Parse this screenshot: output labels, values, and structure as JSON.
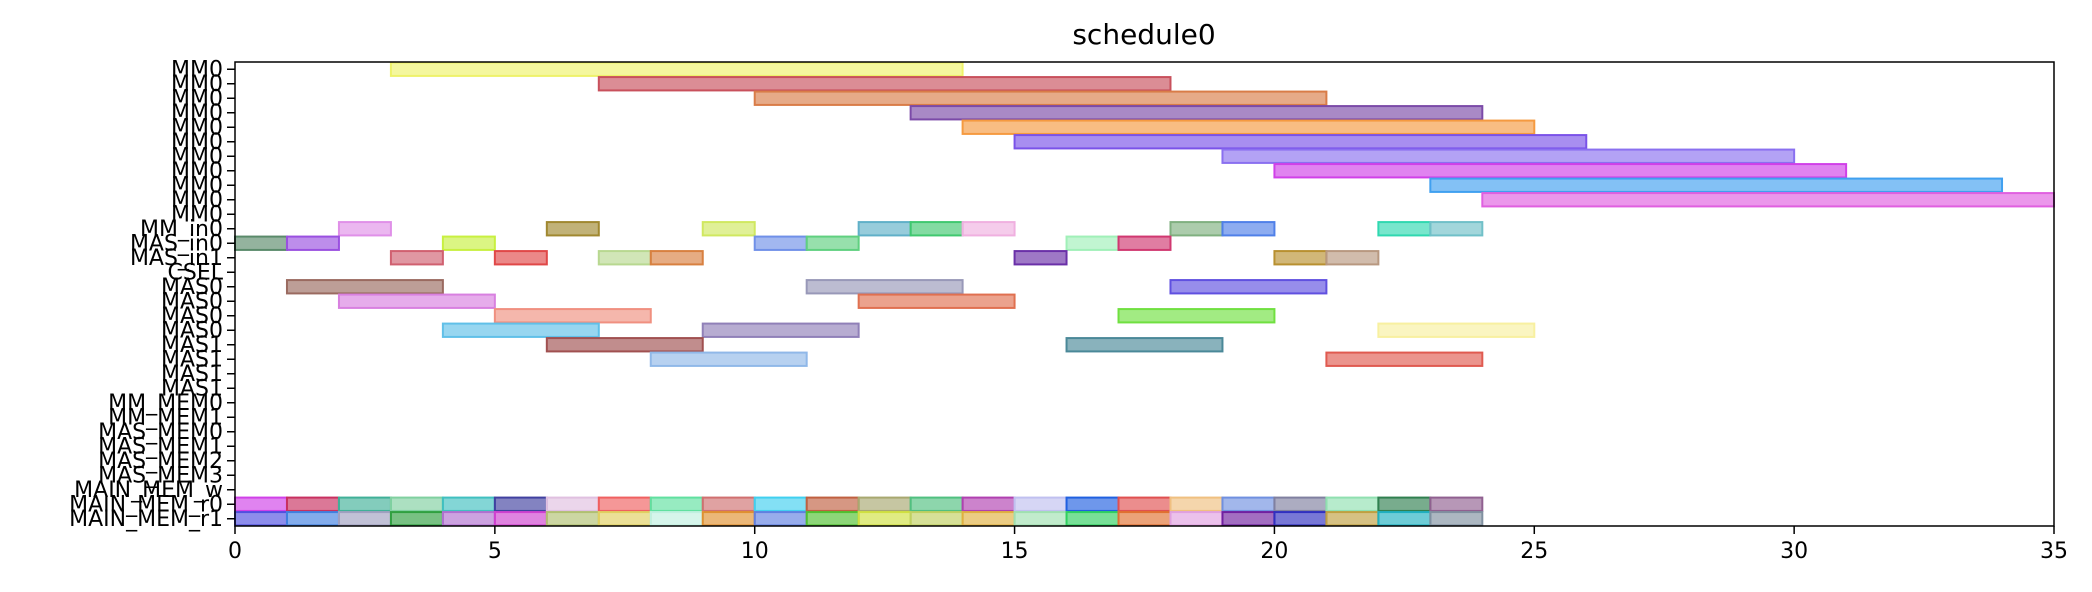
{
  "chart_data": {
    "type": "gantt",
    "title": "schedule0",
    "xlabel": "",
    "ylabel": "",
    "xlim": [
      0,
      35
    ],
    "xticks": [
      0,
      5,
      10,
      15,
      20,
      25,
      30,
      35
    ],
    "grid": false,
    "legend": "none",
    "rows": [
      "MM0",
      "MM0",
      "MM0",
      "MM0",
      "MM0",
      "MM0",
      "MM0",
      "MM0",
      "MM0",
      "MM0",
      "MM0",
      "MM_in0",
      "MAS_in0",
      "MAS_in1",
      "CSEL",
      "MAS0",
      "MAS0",
      "MAS0",
      "MAS0",
      "MAS1",
      "MAS1",
      "MAS1",
      "MAS1",
      "MM_MEM0",
      "MM_MEM1",
      "MAS_MEM0",
      "MAS_MEM1",
      "MAS_MEM2",
      "MAS_MEM3",
      "MAIN_MEM_w",
      "MAIN_MEM_r0",
      "MAIN_MEM_r1"
    ],
    "tasks": [
      {
        "row": 0,
        "start": 3,
        "end": 14,
        "color": "#eef26a"
      },
      {
        "row": 1,
        "start": 7,
        "end": 18,
        "color": "#c8505c"
      },
      {
        "row": 2,
        "start": 10,
        "end": 21,
        "color": "#d97c48"
      },
      {
        "row": 3,
        "start": 13,
        "end": 24,
        "color": "#7b4aa8"
      },
      {
        "row": 4,
        "start": 14,
        "end": 25,
        "color": "#f59a40"
      },
      {
        "row": 5,
        "start": 15,
        "end": 26,
        "color": "#7a52e8"
      },
      {
        "row": 6,
        "start": 19,
        "end": 30,
        "color": "#8a70f0"
      },
      {
        "row": 7,
        "start": 20,
        "end": 31,
        "color": "#d040e8"
      },
      {
        "row": 8,
        "start": 23,
        "end": 34,
        "color": "#40a0f0"
      },
      {
        "row": 9,
        "start": 24,
        "end": 35,
        "color": "#e060e0"
      },
      {
        "row": 11,
        "start": 2,
        "end": 3,
        "color": "#e090e8"
      },
      {
        "row": 11,
        "start": 6,
        "end": 7,
        "color": "#a08830"
      },
      {
        "row": 11,
        "start": 9,
        "end": 10,
        "color": "#d0e860"
      },
      {
        "row": 11,
        "start": 12,
        "end": 13,
        "color": "#60b0c8"
      },
      {
        "row": 11,
        "start": 13,
        "end": 14,
        "color": "#40c870"
      },
      {
        "row": 11,
        "start": 14,
        "end": 15,
        "color": "#f0b0e0"
      },
      {
        "row": 11,
        "start": 18,
        "end": 19,
        "color": "#80b080"
      },
      {
        "row": 11,
        "start": 19,
        "end": 20,
        "color": "#5080e8"
      },
      {
        "row": 11,
        "start": 22,
        "end": 23,
        "color": "#30d8b0"
      },
      {
        "row": 11,
        "start": 23,
        "end": 24,
        "color": "#70c0c8"
      },
      {
        "row": 12,
        "start": 0,
        "end": 1,
        "color": "#5a8a6a"
      },
      {
        "row": 12,
        "start": 1,
        "end": 2,
        "color": "#9a50e0"
      },
      {
        "row": 12,
        "start": 4,
        "end": 5,
        "color": "#c8f040"
      },
      {
        "row": 12,
        "start": 10,
        "end": 11,
        "color": "#7090e8"
      },
      {
        "row": 12,
        "start": 11,
        "end": 12,
        "color": "#60d080"
      },
      {
        "row": 12,
        "start": 16,
        "end": 17,
        "color": "#a0f0b8"
      },
      {
        "row": 12,
        "start": 17,
        "end": 18,
        "color": "#d03870"
      },
      {
        "row": 13,
        "start": 3,
        "end": 4,
        "color": "#d06070"
      },
      {
        "row": 13,
        "start": 5,
        "end": 6,
        "color": "#e04848"
      },
      {
        "row": 13,
        "start": 7,
        "end": 8,
        "color": "#b8d890"
      },
      {
        "row": 13,
        "start": 8,
        "end": 9,
        "color": "#d88040"
      },
      {
        "row": 13,
        "start": 15,
        "end": 16,
        "color": "#6a30a8"
      },
      {
        "row": 13,
        "start": 20,
        "end": 21,
        "color": "#b89030"
      },
      {
        "row": 13,
        "start": 21,
        "end": 22,
        "color": "#b89880"
      },
      {
        "row": 15,
        "start": 1,
        "end": 4,
        "color": "#9a6a60"
      },
      {
        "row": 15,
        "start": 11,
        "end": 14,
        "color": "#9898b8"
      },
      {
        "row": 15,
        "start": 18,
        "end": 21,
        "color": "#6050e0"
      },
      {
        "row": 16,
        "start": 2,
        "end": 5,
        "color": "#d880e0"
      },
      {
        "row": 16,
        "start": 12,
        "end": 15,
        "color": "#e07050"
      },
      {
        "row": 17,
        "start": 5,
        "end": 8,
        "color": "#f09080"
      },
      {
        "row": 17,
        "start": 17,
        "end": 20,
        "color": "#70e040"
      },
      {
        "row": 18,
        "start": 4,
        "end": 7,
        "color": "#60c0e8"
      },
      {
        "row": 18,
        "start": 9,
        "end": 12,
        "color": "#9080b8"
      },
      {
        "row": 18,
        "start": 22,
        "end": 25,
        "color": "#f8f0a0"
      },
      {
        "row": 19,
        "start": 6,
        "end": 9,
        "color": "#a05050"
      },
      {
        "row": 19,
        "start": 16,
        "end": 19,
        "color": "#4a8898"
      },
      {
        "row": 20,
        "start": 8,
        "end": 11,
        "color": "#90b8e8"
      },
      {
        "row": 20,
        "start": 21,
        "end": 24,
        "color": "#e05a50"
      },
      {
        "row": 30,
        "start": 0,
        "end": 1,
        "color": "#d040e8"
      },
      {
        "row": 30,
        "start": 1,
        "end": 2,
        "color": "#c83060"
      },
      {
        "row": 30,
        "start": 2,
        "end": 3,
        "color": "#40b098"
      },
      {
        "row": 30,
        "start": 3,
        "end": 4,
        "color": "#80d0a0"
      },
      {
        "row": 30,
        "start": 4,
        "end": 5,
        "color": "#40c0c0"
      },
      {
        "row": 30,
        "start": 5,
        "end": 6,
        "color": "#4040a0"
      },
      {
        "row": 30,
        "start": 6,
        "end": 7,
        "color": "#e0c0e0"
      },
      {
        "row": 30,
        "start": 7,
        "end": 8,
        "color": "#f06060"
      },
      {
        "row": 30,
        "start": 8,
        "end": 9,
        "color": "#60e0a0"
      },
      {
        "row": 30,
        "start": 9,
        "end": 10,
        "color": "#d07070"
      },
      {
        "row": 30,
        "start": 10,
        "end": 11,
        "color": "#40d0f0"
      },
      {
        "row": 30,
        "start": 11,
        "end": 12,
        "color": "#c06040"
      },
      {
        "row": 30,
        "start": 12,
        "end": 13,
        "color": "#a8a870"
      },
      {
        "row": 30,
        "start": 13,
        "end": 14,
        "color": "#50c080"
      },
      {
        "row": 30,
        "start": 14,
        "end": 15,
        "color": "#b040b0"
      },
      {
        "row": 30,
        "start": 15,
        "end": 16,
        "color": "#c0c0f0"
      },
      {
        "row": 30,
        "start": 16,
        "end": 17,
        "color": "#2060e0"
      },
      {
        "row": 30,
        "start": 17,
        "end": 18,
        "color": "#e05050"
      },
      {
        "row": 30,
        "start": 18,
        "end": 19,
        "color": "#f0c080"
      },
      {
        "row": 30,
        "start": 19,
        "end": 20,
        "color": "#7090e0"
      },
      {
        "row": 30,
        "start": 20,
        "end": 21,
        "color": "#8080a0"
      },
      {
        "row": 30,
        "start": 21,
        "end": 22,
        "color": "#90e0b0"
      },
      {
        "row": 30,
        "start": 22,
        "end": 23,
        "color": "#308050"
      },
      {
        "row": 30,
        "start": 23,
        "end": 24,
        "color": "#906090"
      },
      {
        "row": 31,
        "start": 0,
        "end": 1,
        "color": "#5050e0"
      },
      {
        "row": 31,
        "start": 1,
        "end": 2,
        "color": "#4080e0"
      },
      {
        "row": 31,
        "start": 2,
        "end": 3,
        "color": "#a0a0c0"
      },
      {
        "row": 31,
        "start": 3,
        "end": 4,
        "color": "#30a040"
      },
      {
        "row": 31,
        "start": 4,
        "end": 5,
        "color": "#b070d0"
      },
      {
        "row": 31,
        "start": 5,
        "end": 6,
        "color": "#d040d0"
      },
      {
        "row": 31,
        "start": 6,
        "end": 7,
        "color": "#b0c070"
      },
      {
        "row": 31,
        "start": 7,
        "end": 8,
        "color": "#e0d060"
      },
      {
        "row": 31,
        "start": 8,
        "end": 9,
        "color": "#c0f0e0"
      },
      {
        "row": 31,
        "start": 9,
        "end": 10,
        "color": "#e09030"
      },
      {
        "row": 31,
        "start": 10,
        "end": 11,
        "color": "#6080e0"
      },
      {
        "row": 31,
        "start": 11,
        "end": 12,
        "color": "#50c030"
      },
      {
        "row": 31,
        "start": 12,
        "end": 13,
        "color": "#d0e040"
      },
      {
        "row": 31,
        "start": 13,
        "end": 14,
        "color": "#c0d060"
      },
      {
        "row": 31,
        "start": 14,
        "end": 15,
        "color": "#e0b040"
      },
      {
        "row": 31,
        "start": 15,
        "end": 16,
        "color": "#a0e0b0"
      },
      {
        "row": 31,
        "start": 16,
        "end": 17,
        "color": "#30d060"
      },
      {
        "row": 31,
        "start": 17,
        "end": 18,
        "color": "#e07030"
      },
      {
        "row": 31,
        "start": 18,
        "end": 19,
        "color": "#e0a0e0"
      },
      {
        "row": 31,
        "start": 19,
        "end": 20,
        "color": "#7020a0"
      },
      {
        "row": 31,
        "start": 20,
        "end": 21,
        "color": "#3030c0"
      },
      {
        "row": 31,
        "start": 21,
        "end": 22,
        "color": "#c0a040"
      },
      {
        "row": 31,
        "start": 22,
        "end": 23,
        "color": "#20b0c0"
      },
      {
        "row": 31,
        "start": 23,
        "end": 24,
        "color": "#8090a0"
      }
    ]
  }
}
